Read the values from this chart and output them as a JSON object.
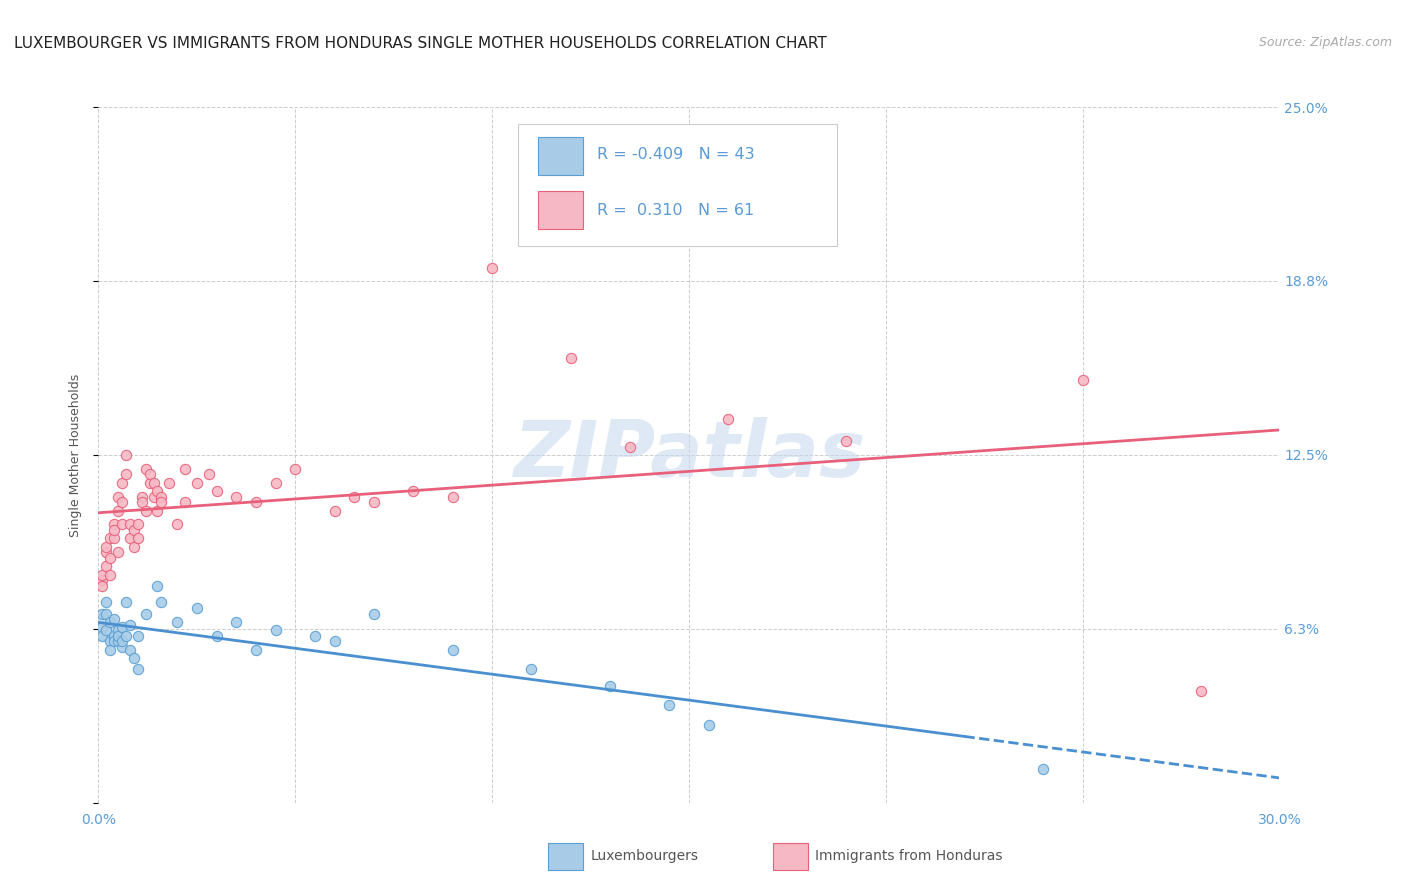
{
  "title": "LUXEMBOURGER VS IMMIGRANTS FROM HONDURAS SINGLE MOTHER HOUSEHOLDS CORRELATION CHART",
  "source": "Source: ZipAtlas.com",
  "ylabel": "Single Mother Households",
  "ytick_labels": [
    "",
    "6.3%",
    "12.5%",
    "18.8%",
    "25.0%"
  ],
  "ytick_vals": [
    0.0,
    0.0625,
    0.125,
    0.1875,
    0.25
  ],
  "xtick_labels": [
    "0.0%",
    "",
    "",
    "",
    "",
    "",
    "30.0%"
  ],
  "xtick_vals": [
    0.0,
    0.05,
    0.1,
    0.15,
    0.2,
    0.25,
    0.3
  ],
  "xlim": [
    0.0,
    0.3
  ],
  "ylim": [
    0.0,
    0.25
  ],
  "legend_blue_R": "-0.409",
  "legend_blue_N": "43",
  "legend_pink_R": "0.310",
  "legend_pink_N": "61",
  "legend_label_blue": "Luxembourgers",
  "legend_label_pink": "Immigrants from Honduras",
  "blue_color": "#a8cce8",
  "pink_color": "#f5b8c4",
  "blue_edge_color": "#5a9fd4",
  "pink_edge_color": "#e8607a",
  "blue_line_color": "#4a90d0",
  "pink_line_color": "#e8607a",
  "title_color": "#222222",
  "axis_color": "#5b9bd5",
  "grid_color": "#c8c8c8",
  "watermark": "ZIPatlas",
  "blue_scatter": [
    [
      0.001,
      0.068
    ],
    [
      0.001,
      0.063
    ],
    [
      0.001,
      0.06
    ],
    [
      0.002,
      0.072
    ],
    [
      0.002,
      0.068
    ],
    [
      0.002,
      0.062
    ],
    [
      0.003,
      0.065
    ],
    [
      0.003,
      0.058
    ],
    [
      0.003,
      0.055
    ],
    [
      0.004,
      0.066
    ],
    [
      0.004,
      0.06
    ],
    [
      0.004,
      0.058
    ],
    [
      0.005,
      0.062
    ],
    [
      0.005,
      0.058
    ],
    [
      0.005,
      0.06
    ],
    [
      0.006,
      0.063
    ],
    [
      0.006,
      0.056
    ],
    [
      0.006,
      0.058
    ],
    [
      0.007,
      0.072
    ],
    [
      0.007,
      0.06
    ],
    [
      0.008,
      0.055
    ],
    [
      0.008,
      0.064
    ],
    [
      0.009,
      0.052
    ],
    [
      0.01,
      0.048
    ],
    [
      0.01,
      0.06
    ],
    [
      0.012,
      0.068
    ],
    [
      0.015,
      0.078
    ],
    [
      0.016,
      0.072
    ],
    [
      0.02,
      0.065
    ],
    [
      0.025,
      0.07
    ],
    [
      0.03,
      0.06
    ],
    [
      0.035,
      0.065
    ],
    [
      0.04,
      0.055
    ],
    [
      0.045,
      0.062
    ],
    [
      0.055,
      0.06
    ],
    [
      0.06,
      0.058
    ],
    [
      0.07,
      0.068
    ],
    [
      0.09,
      0.055
    ],
    [
      0.11,
      0.048
    ],
    [
      0.13,
      0.042
    ],
    [
      0.145,
      0.035
    ],
    [
      0.155,
      0.028
    ],
    [
      0.24,
      0.012
    ]
  ],
  "pink_scatter": [
    [
      0.001,
      0.08
    ],
    [
      0.001,
      0.078
    ],
    [
      0.001,
      0.082
    ],
    [
      0.002,
      0.09
    ],
    [
      0.002,
      0.085
    ],
    [
      0.002,
      0.092
    ],
    [
      0.003,
      0.095
    ],
    [
      0.003,
      0.088
    ],
    [
      0.003,
      0.082
    ],
    [
      0.004,
      0.1
    ],
    [
      0.004,
      0.095
    ],
    [
      0.004,
      0.098
    ],
    [
      0.005,
      0.09
    ],
    [
      0.005,
      0.105
    ],
    [
      0.005,
      0.11
    ],
    [
      0.006,
      0.108
    ],
    [
      0.006,
      0.1
    ],
    [
      0.006,
      0.115
    ],
    [
      0.007,
      0.125
    ],
    [
      0.007,
      0.118
    ],
    [
      0.008,
      0.095
    ],
    [
      0.008,
      0.1
    ],
    [
      0.009,
      0.092
    ],
    [
      0.009,
      0.098
    ],
    [
      0.01,
      0.095
    ],
    [
      0.01,
      0.1
    ],
    [
      0.011,
      0.11
    ],
    [
      0.011,
      0.108
    ],
    [
      0.012,
      0.105
    ],
    [
      0.012,
      0.12
    ],
    [
      0.013,
      0.115
    ],
    [
      0.013,
      0.118
    ],
    [
      0.014,
      0.11
    ],
    [
      0.014,
      0.115
    ],
    [
      0.015,
      0.105
    ],
    [
      0.015,
      0.112
    ],
    [
      0.016,
      0.11
    ],
    [
      0.016,
      0.108
    ],
    [
      0.018,
      0.115
    ],
    [
      0.02,
      0.1
    ],
    [
      0.022,
      0.108
    ],
    [
      0.022,
      0.12
    ],
    [
      0.025,
      0.115
    ],
    [
      0.028,
      0.118
    ],
    [
      0.03,
      0.112
    ],
    [
      0.035,
      0.11
    ],
    [
      0.04,
      0.108
    ],
    [
      0.045,
      0.115
    ],
    [
      0.05,
      0.12
    ],
    [
      0.06,
      0.105
    ],
    [
      0.065,
      0.11
    ],
    [
      0.07,
      0.108
    ],
    [
      0.08,
      0.112
    ],
    [
      0.09,
      0.11
    ],
    [
      0.1,
      0.192
    ],
    [
      0.12,
      0.16
    ],
    [
      0.135,
      0.128
    ],
    [
      0.16,
      0.138
    ],
    [
      0.19,
      0.13
    ],
    [
      0.25,
      0.152
    ],
    [
      0.28,
      0.04
    ]
  ],
  "title_fontsize": 11,
  "source_fontsize": 9,
  "tick_fontsize": 10,
  "axis_label_fontsize": 9
}
